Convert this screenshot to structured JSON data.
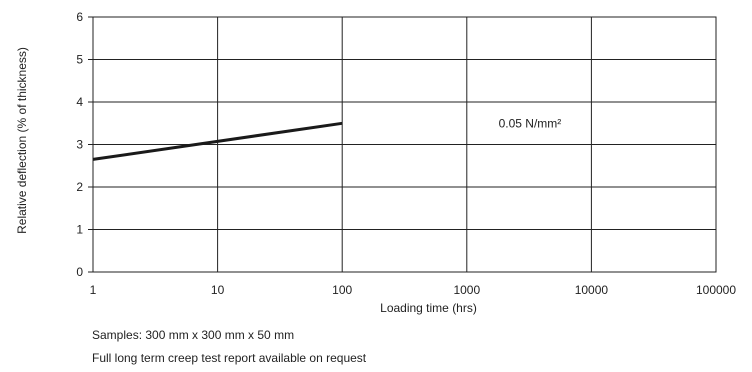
{
  "chart_data": {
    "type": "line",
    "xlabel": "Loading time (hrs)",
    "ylabel": "Relative deflection (% of thickness)",
    "x_scale": "log",
    "xlim": [
      1,
      100000
    ],
    "ylim": [
      0,
      6
    ],
    "x_ticks": [
      "1",
      "10",
      "100",
      "1000",
      "10000",
      "100000"
    ],
    "y_ticks": [
      "0",
      "1",
      "2",
      "3",
      "4",
      "5",
      "6"
    ],
    "grid": true,
    "series": [
      {
        "name": "",
        "x": [
          1,
          100
        ],
        "y": [
          2.65,
          3.5
        ],
        "color": "#1a1a1a"
      }
    ],
    "annotations": [
      {
        "text": "0.05 N/mm²",
        "x": 1800,
        "y": 3.4
      }
    ]
  },
  "notes": {
    "samples": "Samples: 300 mm x 300 mm x 50 mm",
    "report": "Full long term creep test report available on request"
  }
}
